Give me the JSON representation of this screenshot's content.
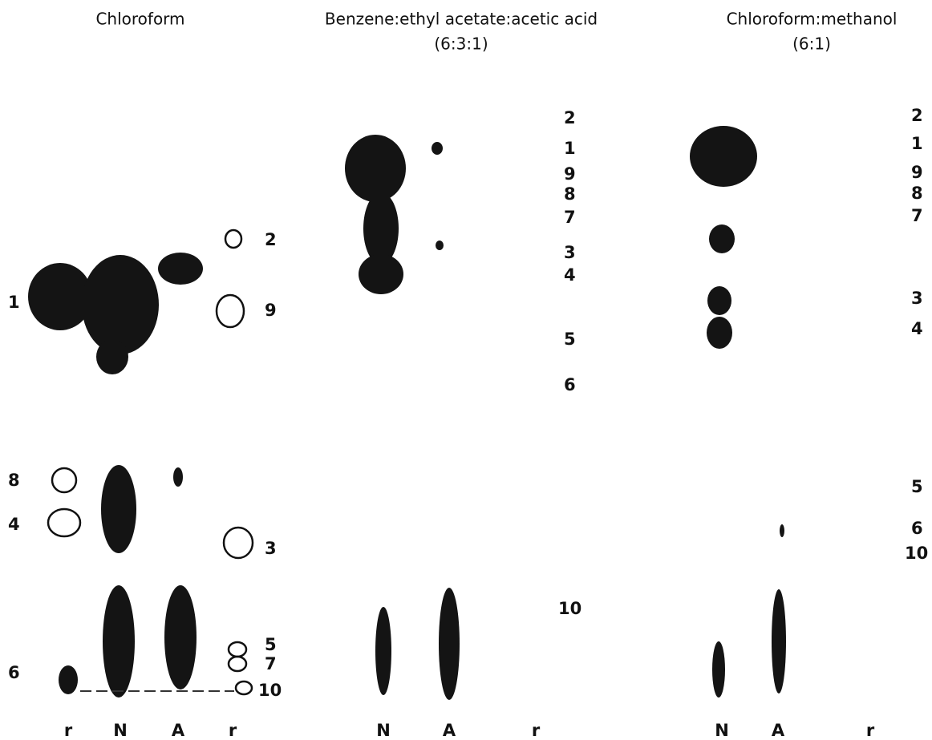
{
  "panels": [
    {
      "title": [
        "Chloroform"
      ],
      "spot_labels": [
        "2",
        "9",
        "1",
        "8",
        "4",
        "3",
        "6",
        "5",
        "7",
        "10"
      ],
      "lanes": [
        "r",
        "N",
        "A",
        "r"
      ]
    },
    {
      "title": [
        "Benzene:ethyl acetate:acetic acid",
        "(6:3:1)"
      ],
      "spot_labels": [
        "2",
        "1",
        "9",
        "8",
        "7",
        "3",
        "4",
        "5",
        "6",
        "10"
      ],
      "lanes": [
        "N",
        "A",
        "r"
      ]
    },
    {
      "title": [
        "Chloroform:methanol",
        "(6:1)"
      ],
      "spot_labels": [
        "2",
        "1",
        "9",
        "8",
        "7",
        "3",
        "4",
        "5",
        "6",
        "10"
      ],
      "lanes": [
        "N",
        "A",
        "r"
      ]
    }
  ]
}
